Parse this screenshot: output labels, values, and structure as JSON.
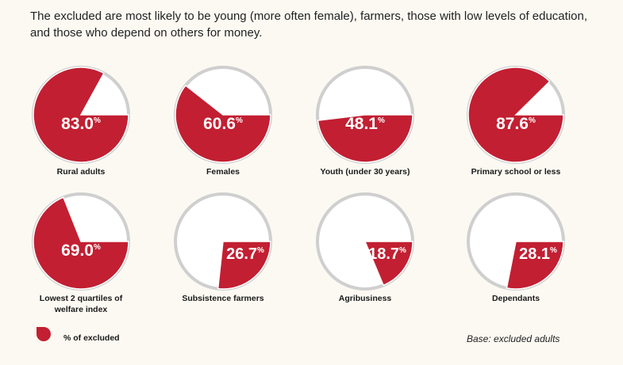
{
  "headline": "The excluded are most likely to be young (more often female), farmers, those with low levels of education, and those who depend on others for money.",
  "colors": {
    "accent": "#c21f32",
    "pie_background": "#ffffff",
    "ring": "#cfcfcf",
    "page": "#fbf9f2"
  },
  "chart_data": {
    "type": "pie",
    "series_name": "% of excluded",
    "unit": "%",
    "items": [
      {
        "label": "Rural adults",
        "value": 83.0,
        "display": "83.0"
      },
      {
        "label": "Females",
        "value": 60.6,
        "display": "60.6"
      },
      {
        "label": "Youth (under 30 years)",
        "value": 48.1,
        "display": "48.1"
      },
      {
        "label": "Primary school or less",
        "value": 87.6,
        "display": "87.6"
      },
      {
        "label": "Lowest 2 quartiles of\nwelfare index",
        "value": 69.0,
        "display": "69.0"
      },
      {
        "label": "Subsistence farmers",
        "value": 26.7,
        "display": "26.7"
      },
      {
        "label": "Agribusiness",
        "value": 18.7,
        "display": "18.7"
      },
      {
        "label": "Dependants",
        "value": 28.1,
        "display": "28.1"
      }
    ]
  },
  "legend": {
    "label": "% of excluded",
    "icon": "teardrop-swatch-icon"
  },
  "base_note": "Base: excluded adults"
}
